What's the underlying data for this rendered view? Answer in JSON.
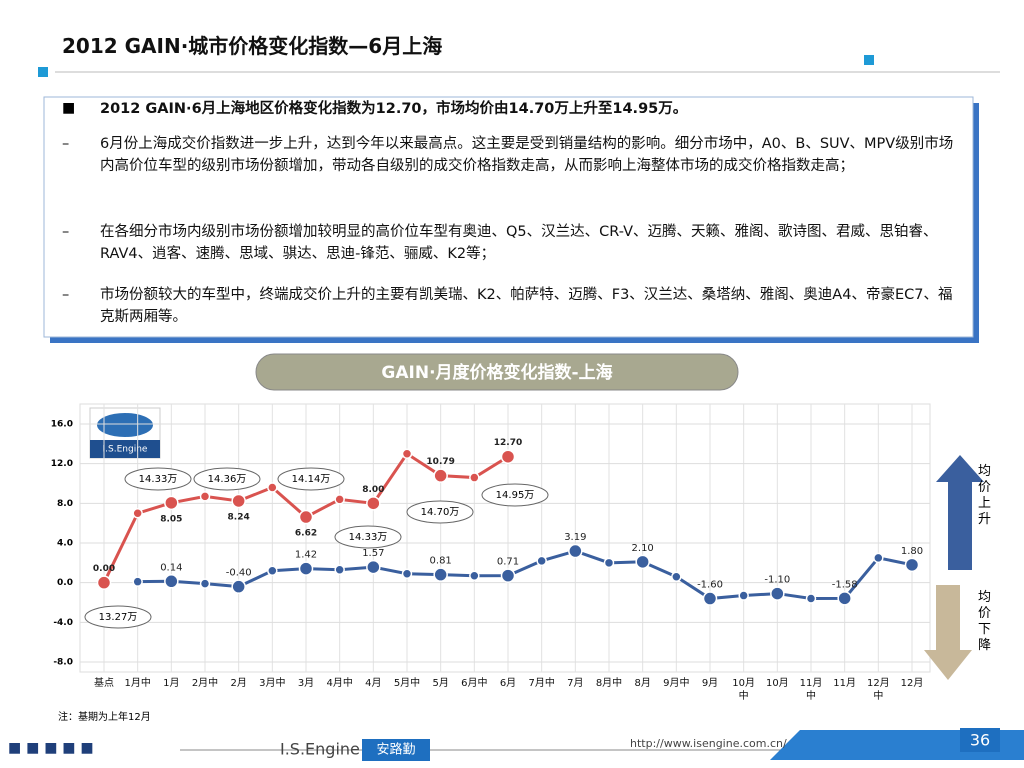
{
  "header": {
    "title": "2012 GAIN·城市价格变化指数—6月上海"
  },
  "summary": {
    "headline": "2012 GAIN·6月上海地区价格变化指数为12.70，市场均价由14.70万上升至14.95万。",
    "points": [
      "6月份上海成交价指数进一步上升，达到今年以来最高点。这主要是受到销量结构的影响。细分市场中，A0、B、SUV、MPV级别市场内高价位车型的级别市场份额增加，带动各自级别的成交价格指数走高，从而影响上海整体市场的成交价格指数走高；",
      "在各细分市场内级别市场份额增加较明显的高价位车型有奥迪、Q5、汉兰达、CR-V、迈腾、天籁、雅阁、歌诗图、君威、思铂睿、RAV4、逍客、速腾、思域、骐达、思迪-锋范、骊威、K2等；",
      "市场份额较大的车型中，终端成交价上升的主要有凯美瑞、K2、帕萨特、迈腾、F3、汉兰达、桑塔纳、雅阁、奥迪A4、帝豪EC7、福克斯两厢等。"
    ]
  },
  "chart_data": {
    "type": "line",
    "title": "GAIN·月度价格变化指数-上海",
    "categories": [
      "基点",
      "1月中",
      "1月",
      "2月中",
      "2月",
      "3月中",
      "3月",
      "4月中",
      "4月",
      "5月中",
      "5月",
      "6月中",
      "6月",
      "7月中",
      "7月",
      "8月中",
      "8月",
      "9月中",
      "9月",
      "10月中",
      "10月",
      "11月中",
      "11月",
      "12月中",
      "12月"
    ],
    "series": [
      {
        "color": "#d9534f",
        "values": [
          0,
          7.0,
          8.05,
          8.7,
          8.24,
          9.6,
          6.62,
          8.4,
          8.0,
          13.0,
          10.79,
          10.6,
          12.7,
          null,
          null,
          null,
          null,
          null,
          null,
          null,
          null,
          null,
          null,
          null,
          null
        ],
        "value_labels": [
          "0.00",
          null,
          "8.05",
          null,
          "8.24",
          null,
          "6.62",
          null,
          "8.00",
          null,
          "10.79",
          null,
          "12.70",
          null,
          null,
          null,
          null,
          null,
          null,
          null,
          null,
          null,
          null,
          null,
          null
        ]
      },
      {
        "color": "#3a5f9e",
        "values": [
          null,
          0.1,
          0.14,
          -0.1,
          -0.4,
          1.2,
          1.42,
          1.3,
          1.57,
          0.9,
          0.81,
          0.7,
          0.71,
          2.2,
          3.19,
          2.0,
          2.1,
          0.6,
          -1.6,
          -1.3,
          -1.1,
          -1.6,
          -1.58,
          2.5,
          1.8
        ],
        "value_labels": [
          null,
          null,
          "0.14",
          null,
          "-0.40",
          null,
          "1.42",
          null,
          "1.57",
          null,
          "0.81",
          null,
          "0.71",
          null,
          "3.19",
          null,
          "2.10",
          null,
          "-1.60",
          null,
          "-1.10",
          null,
          "-1.58",
          null,
          "1.80"
        ]
      }
    ],
    "ylim": [
      -8,
      16
    ],
    "yticks": [
      {
        "value": -8,
        "label": "-8.0"
      },
      {
        "value": -4,
        "label": "-4.0"
      },
      {
        "value": 0,
        "label": "0.0"
      },
      {
        "value": 4,
        "label": "4.0"
      },
      {
        "value": 8,
        "label": "8.0"
      },
      {
        "value": 12,
        "label": "12.0"
      },
      {
        "value": 16,
        "label": "16.0"
      }
    ],
    "grid": true,
    "annotations": [
      "13.27万",
      "14.33万",
      "14.36万",
      "14.14万",
      "14.33万",
      "14.70万",
      "14.95万"
    ],
    "legend_labels": [
      "均价上升",
      "均价下降"
    ],
    "note": "注：基期为上年12月"
  },
  "logo": "I.S.Engine",
  "footer": {
    "brand": "I.S.Engine",
    "brand_cn": "安路勤",
    "url": "http://www.isengine.com.cn/",
    "page": "36"
  }
}
